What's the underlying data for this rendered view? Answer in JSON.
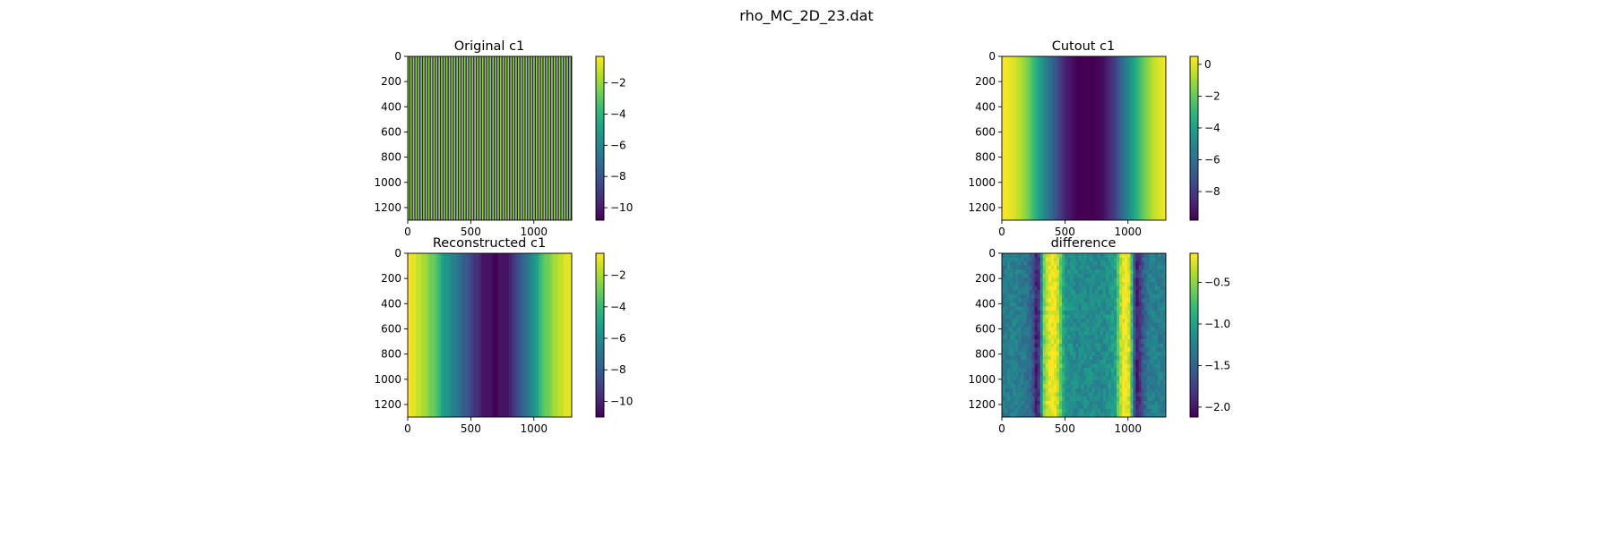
{
  "figure": {
    "suptitle": "rho_MC_2D_23.dat"
  },
  "chart_data": [
    {
      "type": "heatmap",
      "title": "Original c1",
      "pattern": "stripes",
      "stripe_count": 64,
      "xlim": [
        0,
        1300
      ],
      "ylim": [
        1300,
        0
      ],
      "xticks": [
        0,
        500,
        1000
      ],
      "yticks": [
        0,
        200,
        400,
        600,
        800,
        1000,
        1200
      ],
      "colorbar": {
        "range": [
          -10.8,
          -0.3
        ],
        "ticks": [
          -2,
          -4,
          -6,
          -8,
          -10
        ]
      }
    },
    {
      "type": "heatmap",
      "title": "Cutout c1",
      "pattern": "smooth",
      "profile_x": [
        0,
        100,
        200,
        300,
        400,
        500,
        600,
        700,
        800,
        900,
        1000,
        1100,
        1200,
        1300
      ],
      "profile_values": [
        0.5,
        0.0,
        -1.5,
        -4.0,
        -6.5,
        -8.8,
        -9.8,
        -9.9,
        -9.5,
        -7.8,
        -5.0,
        -2.5,
        -0.5,
        0.4
      ],
      "xlim": [
        0,
        1300
      ],
      "ylim": [
        1300,
        0
      ],
      "xticks": [
        0,
        500,
        1000
      ],
      "yticks": [
        0,
        200,
        400,
        600,
        800,
        1000,
        1200
      ],
      "colorbar": {
        "range": [
          -9.8,
          0.5
        ],
        "ticks": [
          0,
          -2,
          -4,
          -6,
          -8
        ]
      }
    },
    {
      "type": "heatmap",
      "title": "Reconstructed c1",
      "pattern": "bands",
      "profile_x": [
        0,
        100,
        200,
        300,
        400,
        500,
        600,
        700,
        800,
        900,
        1000,
        1100,
        1200,
        1300
      ],
      "profile_values": [
        -0.6,
        -1.5,
        -3.0,
        -5.5,
        -7.0,
        -8.8,
        -10.5,
        -10.9,
        -10.3,
        -8.0,
        -5.5,
        -3.0,
        -1.5,
        -0.8
      ],
      "xlim": [
        0,
        1300
      ],
      "ylim": [
        1300,
        0
      ],
      "xticks": [
        0,
        500,
        1000
      ],
      "yticks": [
        0,
        200,
        400,
        600,
        800,
        1000,
        1200
      ],
      "colorbar": {
        "range": [
          -11.0,
          -0.6
        ],
        "ticks": [
          -2,
          -4,
          -6,
          -8,
          -10
        ]
      }
    },
    {
      "type": "heatmap",
      "title": "difference",
      "pattern": "noisy",
      "profile_x": [
        0,
        100,
        200,
        250,
        280,
        300,
        330,
        360,
        390,
        420,
        450,
        500,
        600,
        700,
        800,
        900,
        930,
        960,
        990,
        1020,
        1050,
        1080,
        1100,
        1150,
        1200,
        1300
      ],
      "profile_values": [
        -1.3,
        -1.25,
        -1.35,
        -1.6,
        -2.1,
        -1.7,
        -0.6,
        -0.3,
        -0.15,
        -0.2,
        -0.4,
        -1.1,
        -1.2,
        -1.15,
        -1.2,
        -1.0,
        -0.5,
        -0.2,
        -0.15,
        -0.4,
        -1.6,
        -2.05,
        -1.7,
        -1.35,
        -1.25,
        -1.3
      ],
      "xlim": [
        0,
        1300
      ],
      "ylim": [
        1300,
        0
      ],
      "xticks": [
        0,
        500,
        1000
      ],
      "yticks": [
        0,
        200,
        400,
        600,
        800,
        1000,
        1200
      ],
      "colorbar": {
        "range": [
          -2.12,
          -0.15
        ],
        "ticks": [
          -0.5,
          -1.0,
          -1.5,
          -2.0
        ]
      }
    }
  ]
}
